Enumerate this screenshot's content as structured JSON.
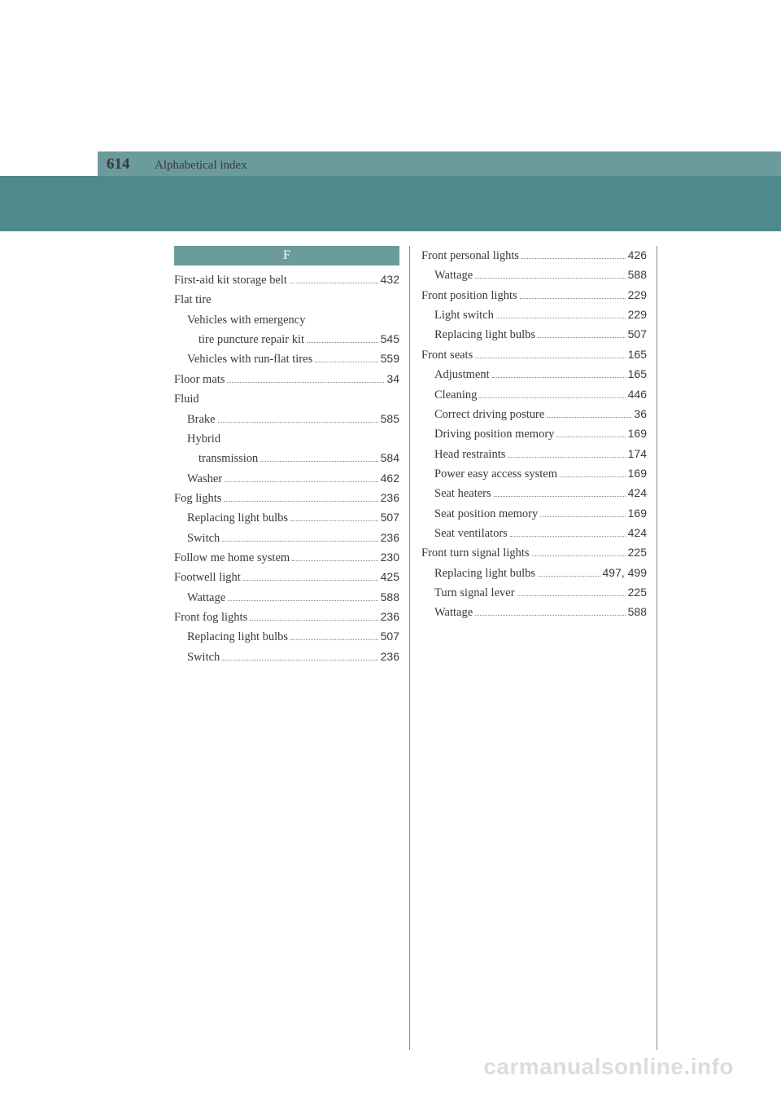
{
  "header": {
    "page_number": "614",
    "section_title": "Alphabetical index"
  },
  "letter_header": "F",
  "columns": [
    [
      {
        "label": "First-aid kit storage belt",
        "page": "432",
        "indent": 0
      },
      {
        "label": "Flat tire",
        "page": "",
        "indent": 0
      },
      {
        "label": "Vehicles with emergency",
        "page": "",
        "indent": 1
      },
      {
        "label": "tire puncture repair kit",
        "page": "545",
        "indent": 2
      },
      {
        "label": "Vehicles with run-flat tires",
        "page": "559",
        "indent": 1
      },
      {
        "label": "Floor mats",
        "page": "34",
        "indent": 0
      },
      {
        "label": "Fluid",
        "page": "",
        "indent": 0
      },
      {
        "label": "Brake",
        "page": "585",
        "indent": 1
      },
      {
        "label": "Hybrid",
        "page": "",
        "indent": 1
      },
      {
        "label": "transmission",
        "page": "584",
        "indent": 2
      },
      {
        "label": "Washer",
        "page": "462",
        "indent": 1
      },
      {
        "label": "Fog lights",
        "page": "236",
        "indent": 0
      },
      {
        "label": "Replacing light bulbs",
        "page": "507",
        "indent": 1
      },
      {
        "label": "Switch",
        "page": "236",
        "indent": 1
      },
      {
        "label": "Follow me home system",
        "page": "230",
        "indent": 0
      },
      {
        "label": "Footwell light",
        "page": "425",
        "indent": 0
      },
      {
        "label": "Wattage",
        "page": "588",
        "indent": 1
      },
      {
        "label": "Front fog lights",
        "page": "236",
        "indent": 0
      },
      {
        "label": "Replacing light bulbs",
        "page": "507",
        "indent": 1
      },
      {
        "label": "Switch",
        "page": "236",
        "indent": 1
      }
    ],
    [
      {
        "label": "Front personal lights",
        "page": "426",
        "indent": 0
      },
      {
        "label": "Wattage",
        "page": "588",
        "indent": 1
      },
      {
        "label": "Front position lights",
        "page": "229",
        "indent": 0
      },
      {
        "label": "Light switch",
        "page": "229",
        "indent": 1
      },
      {
        "label": "Replacing light bulbs",
        "page": "507",
        "indent": 1
      },
      {
        "label": "Front seats",
        "page": "165",
        "indent": 0
      },
      {
        "label": "Adjustment",
        "page": "165",
        "indent": 1
      },
      {
        "label": "Cleaning",
        "page": "446",
        "indent": 1
      },
      {
        "label": "Correct driving posture",
        "page": "36",
        "indent": 1
      },
      {
        "label": "Driving position memory",
        "page": "169",
        "indent": 1
      },
      {
        "label": "Head restraints",
        "page": "174",
        "indent": 1
      },
      {
        "label": "Power easy access system",
        "page": "169",
        "indent": 1
      },
      {
        "label": "Seat heaters",
        "page": "424",
        "indent": 1
      },
      {
        "label": "Seat position memory",
        "page": "169",
        "indent": 1
      },
      {
        "label": "Seat ventilators",
        "page": "424",
        "indent": 1
      },
      {
        "label": "Front turn signal lights",
        "page": "225",
        "indent": 0
      },
      {
        "label": "Replacing light bulbs",
        "page": "497, 499",
        "indent": 1
      },
      {
        "label": "Turn signal lever",
        "page": "225",
        "indent": 1
      },
      {
        "label": "Wattage",
        "page": "588",
        "indent": 1
      }
    ]
  ],
  "watermark": "carmanualsonline.info"
}
